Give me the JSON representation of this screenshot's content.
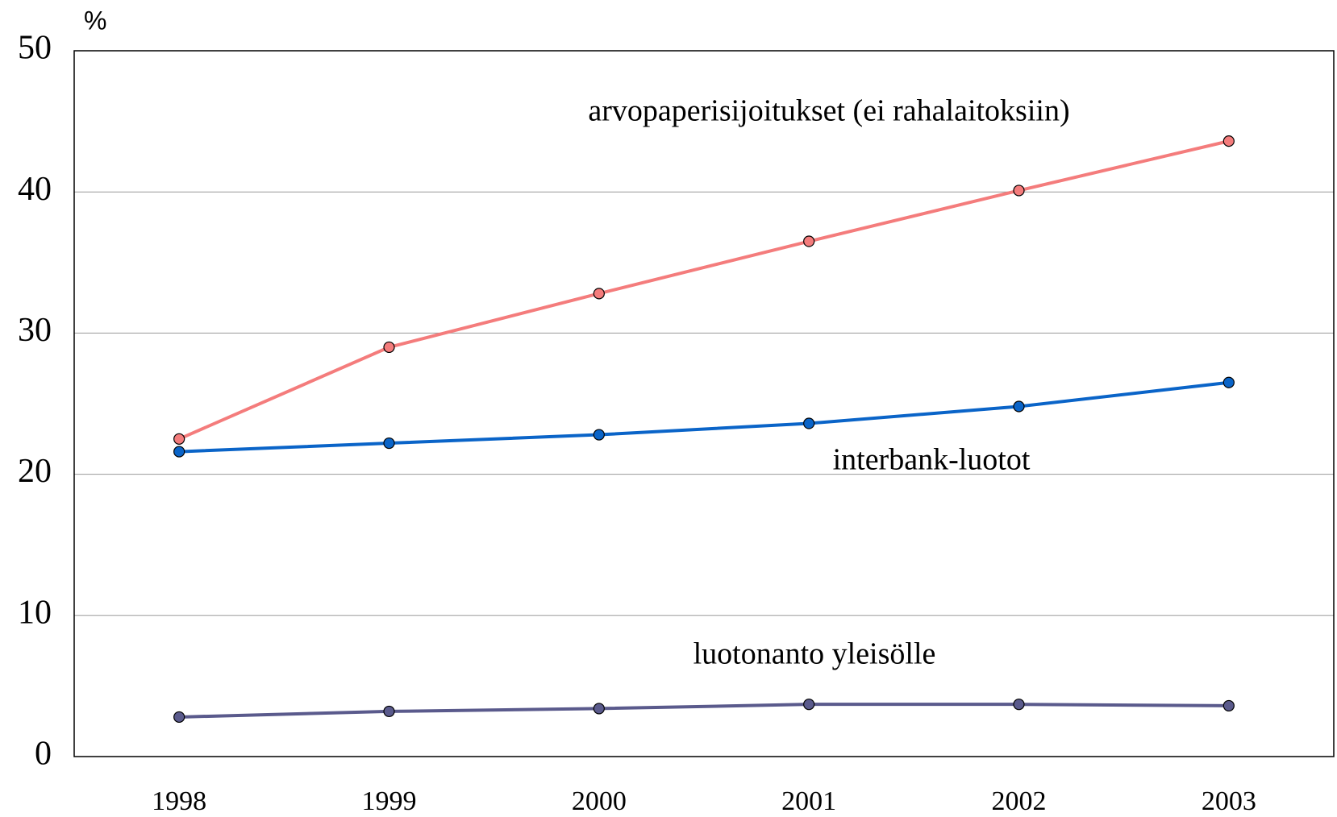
{
  "chart_data": {
    "type": "line",
    "y_label": "%",
    "categories": [
      "1998",
      "1999",
      "2000",
      "2001",
      "2002",
      "2003"
    ],
    "series": [
      {
        "name": "arvopaperisijoitukset (ei rahalaitoksiin)",
        "color": "#f47c7c",
        "values": [
          22.5,
          29.0,
          32.8,
          36.5,
          40.1,
          43.6
        ]
      },
      {
        "name": "interbank-luotot",
        "color": "#0a64c8",
        "values": [
          21.6,
          22.2,
          22.8,
          23.6,
          24.8,
          26.5
        ]
      },
      {
        "name": "luotonanto yleisölle",
        "color": "#5a5a8c",
        "values": [
          2.8,
          3.2,
          3.4,
          3.7,
          3.7,
          3.6
        ]
      }
    ],
    "ylim": [
      0,
      50
    ],
    "yticks": [
      0,
      10,
      20,
      30,
      40,
      50
    ],
    "grid": true
  }
}
